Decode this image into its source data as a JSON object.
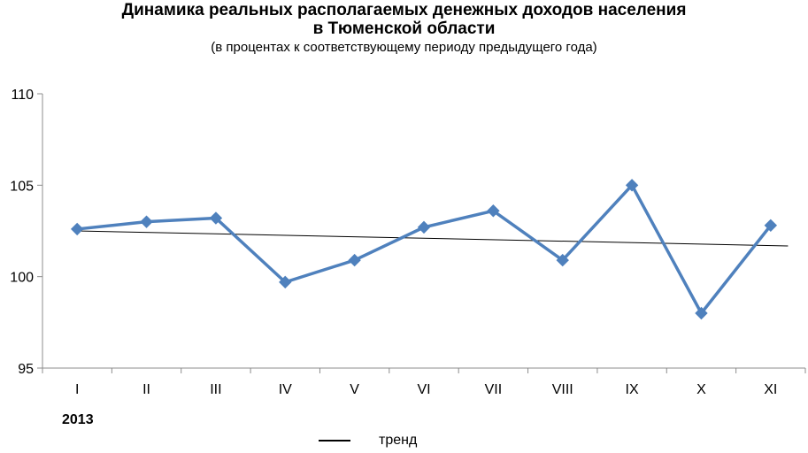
{
  "chart_data": {
    "type": "line",
    "title": "Динамика реальных располагаемых денежных доходов населения в Тюменской области",
    "title_lines": [
      "Динамика реальных располагаемых денежных доходов населения",
      "в Тюменской области"
    ],
    "subtitle": "(в процентах к соответствующему периоду предыдущего года)",
    "categories": [
      "I",
      "II",
      "III",
      "IV",
      "V",
      "VI",
      "VII",
      "VIII",
      "IX",
      "X",
      "XI"
    ],
    "category_group": "2013",
    "series": [
      {
        "values": [
          102.6,
          103.0,
          103.2,
          99.7,
          100.9,
          102.7,
          103.6,
          100.9,
          105.0,
          98.0,
          102.8
        ],
        "color": "#4f81bd",
        "marker": "diamond"
      }
    ],
    "trend": {
      "name": "тренд",
      "start": 102.5,
      "end": 101.7,
      "color": "#000000"
    },
    "ylim": [
      95,
      110
    ],
    "yticks": [
      95,
      100,
      105,
      110
    ],
    "grid": false,
    "legend_position": "bottom"
  }
}
